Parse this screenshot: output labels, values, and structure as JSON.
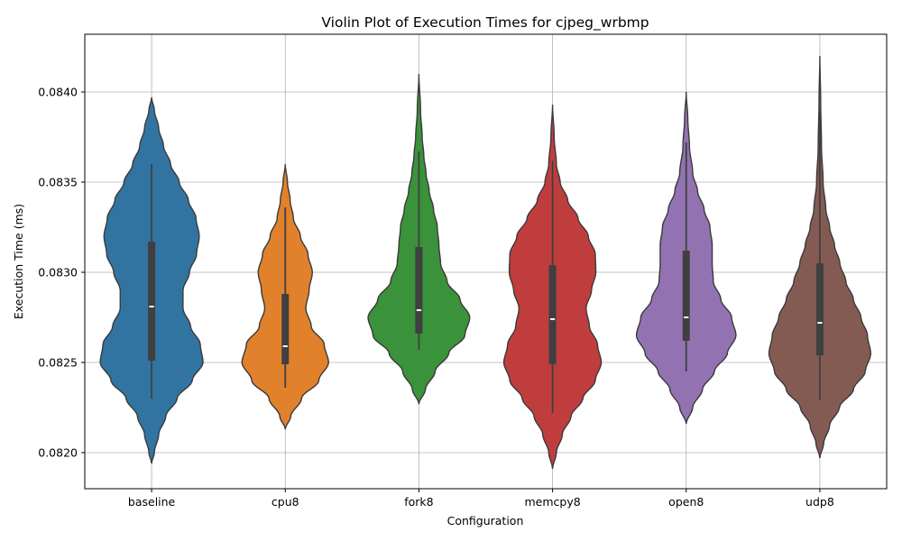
{
  "chart_data": {
    "type": "violin",
    "title": "Violin Plot of Execution Times for cjpeg_wrbmp",
    "xlabel": "Configuration",
    "ylabel": "Execution Time (ms)",
    "ylim": [
      0.0818,
      0.08432
    ],
    "yticks": [
      0.082,
      0.0825,
      0.083,
      0.0835,
      0.084
    ],
    "ytick_labels": [
      "0.0820",
      "0.0825",
      "0.0830",
      "0.0835",
      "0.0840"
    ],
    "grid": true,
    "categories": [
      "baseline",
      "cpu8",
      "fork8",
      "memcpy8",
      "open8",
      "udp8"
    ],
    "colors": [
      "#3274a1",
      "#e1812c",
      "#3a923a",
      "#c03d3e",
      "#9372b2",
      "#845b53"
    ],
    "series": [
      {
        "category": "baseline",
        "min": 0.0823,
        "q1": 0.08251,
        "median": 0.08281,
        "q3": 0.08317,
        "max": 0.0836,
        "kde_low": 0.08194,
        "kde_high": 0.08397,
        "density_profile": [
          [
            0.08194,
            0.0
          ],
          [
            0.082,
            0.05
          ],
          [
            0.0821,
            0.13
          ],
          [
            0.0822,
            0.26
          ],
          [
            0.0823,
            0.47
          ],
          [
            0.0824,
            0.75
          ],
          [
            0.0825,
            0.95
          ],
          [
            0.0826,
            0.9
          ],
          [
            0.0827,
            0.72
          ],
          [
            0.0828,
            0.58
          ],
          [
            0.0829,
            0.58
          ],
          [
            0.083,
            0.7
          ],
          [
            0.0831,
            0.83
          ],
          [
            0.0832,
            0.88
          ],
          [
            0.0833,
            0.82
          ],
          [
            0.0834,
            0.68
          ],
          [
            0.0835,
            0.51
          ],
          [
            0.0836,
            0.35
          ],
          [
            0.0837,
            0.22
          ],
          [
            0.0838,
            0.13
          ],
          [
            0.0839,
            0.05
          ],
          [
            0.08397,
            0.0
          ]
        ]
      },
      {
        "category": "cpu8",
        "min": 0.08236,
        "q1": 0.08249,
        "median": 0.08259,
        "q3": 0.08288,
        "max": 0.08336,
        "kde_low": 0.08213,
        "kde_high": 0.0836,
        "density_profile": [
          [
            0.08213,
            0.0
          ],
          [
            0.0822,
            0.1
          ],
          [
            0.0823,
            0.3
          ],
          [
            0.0824,
            0.62
          ],
          [
            0.0825,
            0.8
          ],
          [
            0.0826,
            0.72
          ],
          [
            0.0827,
            0.48
          ],
          [
            0.0828,
            0.38
          ],
          [
            0.0829,
            0.44
          ],
          [
            0.083,
            0.5
          ],
          [
            0.0831,
            0.42
          ],
          [
            0.0832,
            0.28
          ],
          [
            0.0833,
            0.15
          ],
          [
            0.0834,
            0.09
          ],
          [
            0.0835,
            0.04
          ],
          [
            0.0836,
            0.0
          ]
        ]
      },
      {
        "category": "fork8",
        "min": 0.08257,
        "q1": 0.08266,
        "median": 0.08279,
        "q3": 0.08314,
        "max": 0.08367,
        "kde_low": 0.08227,
        "kde_high": 0.0841,
        "density_profile": [
          [
            0.08227,
            0.0
          ],
          [
            0.08235,
            0.12
          ],
          [
            0.08245,
            0.3
          ],
          [
            0.08255,
            0.55
          ],
          [
            0.08265,
            0.85
          ],
          [
            0.08275,
            0.94
          ],
          [
            0.08285,
            0.76
          ],
          [
            0.08295,
            0.52
          ],
          [
            0.08305,
            0.4
          ],
          [
            0.08315,
            0.37
          ],
          [
            0.08325,
            0.34
          ],
          [
            0.08335,
            0.27
          ],
          [
            0.08345,
            0.19
          ],
          [
            0.08355,
            0.13
          ],
          [
            0.08365,
            0.09
          ],
          [
            0.08375,
            0.06
          ],
          [
            0.0839,
            0.03
          ],
          [
            0.0841,
            0.0
          ]
        ]
      },
      {
        "category": "memcpy8",
        "min": 0.08222,
        "q1": 0.08249,
        "median": 0.08274,
        "q3": 0.08304,
        "max": 0.08362,
        "kde_low": 0.08191,
        "kde_high": 0.08393,
        "density_profile": [
          [
            0.08191,
            0.0
          ],
          [
            0.082,
            0.07
          ],
          [
            0.0821,
            0.18
          ],
          [
            0.0822,
            0.34
          ],
          [
            0.0823,
            0.56
          ],
          [
            0.0824,
            0.79
          ],
          [
            0.0825,
            0.9
          ],
          [
            0.0826,
            0.83
          ],
          [
            0.0827,
            0.68
          ],
          [
            0.0828,
            0.62
          ],
          [
            0.0829,
            0.72
          ],
          [
            0.083,
            0.8
          ],
          [
            0.0831,
            0.79
          ],
          [
            0.0832,
            0.66
          ],
          [
            0.0833,
            0.47
          ],
          [
            0.0834,
            0.28
          ],
          [
            0.0835,
            0.14
          ],
          [
            0.0836,
            0.07
          ],
          [
            0.08375,
            0.03
          ],
          [
            0.08393,
            0.0
          ]
        ]
      },
      {
        "category": "open8",
        "min": 0.08245,
        "q1": 0.08262,
        "median": 0.08275,
        "q3": 0.08312,
        "max": 0.08372,
        "kde_low": 0.08216,
        "kde_high": 0.084,
        "density_profile": [
          [
            0.08216,
            0.0
          ],
          [
            0.08225,
            0.12
          ],
          [
            0.08235,
            0.3
          ],
          [
            0.08245,
            0.52
          ],
          [
            0.08255,
            0.76
          ],
          [
            0.08265,
            0.92
          ],
          [
            0.08275,
            0.84
          ],
          [
            0.08285,
            0.64
          ],
          [
            0.08295,
            0.5
          ],
          [
            0.08305,
            0.48
          ],
          [
            0.08315,
            0.48
          ],
          [
            0.08325,
            0.44
          ],
          [
            0.08335,
            0.33
          ],
          [
            0.08345,
            0.21
          ],
          [
            0.08355,
            0.12
          ],
          [
            0.0837,
            0.06
          ],
          [
            0.08385,
            0.03
          ],
          [
            0.084,
            0.0
          ]
        ]
      },
      {
        "category": "udp8",
        "min": 0.08229,
        "q1": 0.08254,
        "median": 0.08272,
        "q3": 0.08305,
        "max": 0.0839,
        "kde_low": 0.08197,
        "kde_high": 0.0842,
        "density_profile": [
          [
            0.08197,
            0.0
          ],
          [
            0.08205,
            0.07
          ],
          [
            0.08215,
            0.18
          ],
          [
            0.08225,
            0.36
          ],
          [
            0.08235,
            0.62
          ],
          [
            0.08245,
            0.84
          ],
          [
            0.08255,
            0.94
          ],
          [
            0.08265,
            0.88
          ],
          [
            0.08275,
            0.76
          ],
          [
            0.08285,
            0.62
          ],
          [
            0.08295,
            0.48
          ],
          [
            0.08305,
            0.37
          ],
          [
            0.08315,
            0.27
          ],
          [
            0.08325,
            0.18
          ],
          [
            0.08335,
            0.11
          ],
          [
            0.0835,
            0.06
          ],
          [
            0.0837,
            0.03
          ],
          [
            0.08395,
            0.015
          ],
          [
            0.0842,
            0.0
          ]
        ]
      }
    ]
  }
}
